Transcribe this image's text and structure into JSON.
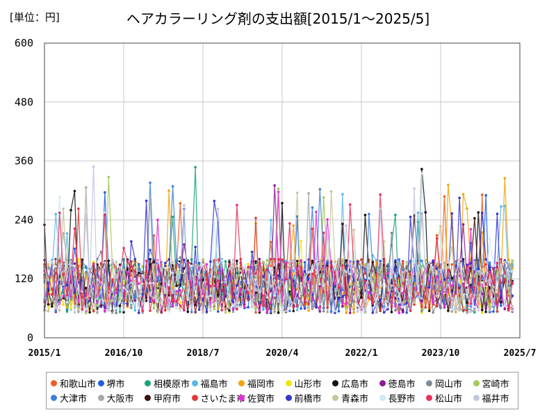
{
  "chart_data": {
    "type": "line",
    "title": "ヘアカラーリング剤の支出額[2015/1～2025/5]",
    "unit_label": "[単位：円]",
    "ylim": [
      0,
      600
    ],
    "yticks": [
      "0",
      "120",
      "240",
      "360",
      "480",
      "600"
    ],
    "xticks": [
      "2015/1",
      "2016/10",
      "2018/7",
      "2020/4",
      "2022/1",
      "2023/10",
      "2025/7"
    ],
    "x_range": [
      "2015-01",
      "2025-07"
    ],
    "grid": true,
    "legend_position": "bottom",
    "series": [
      {
        "name": "和歌山市",
        "color": "#f25c1e"
      },
      {
        "name": "堺市",
        "color": "#1f5fe0"
      },
      {
        "name": "相模原市",
        "color": "#1aa37a"
      },
      {
        "name": "福島市",
        "color": "#5bb8e8"
      },
      {
        "name": "福岡市",
        "color": "#f5a20a"
      },
      {
        "name": "山形市",
        "color": "#f2e40c"
      },
      {
        "name": "広島市",
        "color": "#111111"
      },
      {
        "name": "徳島市",
        "color": "#8a1a9a"
      },
      {
        "name": "岡山市",
        "color": "#7f8c93"
      },
      {
        "name": "宮崎市",
        "color": "#a3c95a"
      },
      {
        "name": "大津市",
        "color": "#3c7fe0"
      },
      {
        "name": "大阪市",
        "color": "#a8a8a8"
      },
      {
        "name": "甲府市",
        "color": "#3a1010"
      },
      {
        "name": "さいたま市",
        "color": "#e03a3a"
      },
      {
        "name": "佐賀市",
        "color": "#e52ed6"
      },
      {
        "name": "前橋市",
        "color": "#3434d0"
      },
      {
        "name": "青森市",
        "color": "#c9c49a"
      },
      {
        "name": "長野市",
        "color": "#cfeaf7"
      },
      {
        "name": "松山市",
        "color": "#e8305a"
      },
      {
        "name": "福井市",
        "color": "#c2c6e0"
      }
    ]
  }
}
